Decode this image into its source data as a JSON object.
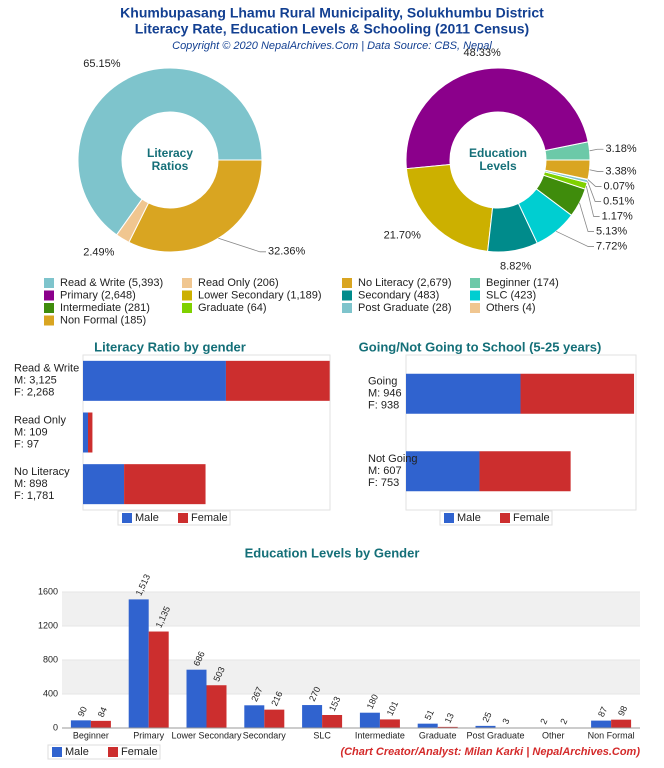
{
  "header": {
    "title": [
      "Khumbupasang Lhamu Rural Municipality, Solukhumbu District",
      "Literacy Rate, Education Levels & Schooling (2011 Census)"
    ],
    "subtitle": "Copyright © 2020 NepalArchives.Com | Data Source: CBS, Nepal"
  },
  "footer": {
    "credit": "(Chart Creator/Analyst: Milan Karki | NepalArchives.Com)"
  },
  "chart_data": [
    {
      "type": "pie",
      "center_label": [
        "Literacy",
        "Ratios"
      ],
      "categories": [
        "Read & Write (5,393)",
        "Read Only (206)",
        "No Literacy (2,679)"
      ],
      "values": [
        65.15,
        2.49,
        32.36
      ],
      "value_labels": [
        "65.15%",
        "2.49%",
        "32.36%"
      ],
      "colors": [
        "#7ec4cc",
        "#f0c690",
        "#d9a521"
      ]
    },
    {
      "type": "pie",
      "center_label": [
        "Education",
        "Levels"
      ],
      "categories": [
        "Beginner (174)",
        "Primary (2,648)",
        "Lower Secondary (1,189)",
        "Secondary (483)",
        "SLC (423)",
        "Intermediate (281)",
        "Graduate (64)",
        "Post Graduate (28)",
        "Others (4)",
        "Non Formal (185)"
      ],
      "values": [
        3.18,
        48.33,
        21.7,
        8.82,
        7.72,
        5.13,
        1.17,
        0.51,
        0.07,
        3.38
      ],
      "value_labels": [
        "3.18%",
        "48.33%",
        "21.70%",
        "8.82%",
        "7.72%",
        "5.13%",
        "1.17%",
        "0.51%",
        "0.07%",
        "3.38%"
      ],
      "colors": [
        "#6cc9a8",
        "#8b008b",
        "#ccb000",
        "#008b8b",
        "#00ced1",
        "#3f8c0c",
        "#7fd100",
        "#7ec4cc",
        "#f0c690",
        "#d9a521"
      ]
    },
    {
      "type": "bar",
      "horizontal": true,
      "stacked": true,
      "title": "Literacy Ratio by gender",
      "categories": [
        [
          "Read & Write",
          "M: 3,125",
          "F: 2,268"
        ],
        [
          "Read Only",
          "M: 109",
          "F: 97"
        ],
        [
          "No Literacy",
          "M: 898",
          "F: 1,781"
        ]
      ],
      "series": [
        {
          "name": "Male",
          "color": "#3063cf",
          "values": [
            3125,
            109,
            898
          ]
        },
        {
          "name": "Female",
          "color": "#cc2e2e",
          "values": [
            2268,
            97,
            1781
          ]
        }
      ],
      "xlim": [
        0,
        5400
      ]
    },
    {
      "type": "bar",
      "horizontal": true,
      "stacked": true,
      "title": "Going/Not Going to School (5-25 years)",
      "categories": [
        [
          "Going",
          "M: 946",
          "F: 938"
        ],
        [
          "Not Going",
          "M: 607",
          "F: 753"
        ]
      ],
      "series": [
        {
          "name": "Male",
          "color": "#3063cf",
          "values": [
            946,
            607
          ]
        },
        {
          "name": "Female",
          "color": "#cc2e2e",
          "values": [
            938,
            753
          ]
        }
      ],
      "xlim": [
        0,
        1900
      ]
    },
    {
      "type": "bar",
      "horizontal": false,
      "stacked": false,
      "title": "Education Levels by Gender",
      "categories": [
        "Beginner",
        "Primary",
        "Lower Secondary",
        "Secondary",
        "SLC",
        "Intermediate",
        "Graduate",
        "Post Graduate",
        "Other",
        "Non Formal"
      ],
      "series": [
        {
          "name": "Male",
          "color": "#3063cf",
          "values": [
            90,
            1513,
            686,
            267,
            270,
            180,
            51,
            25,
            2,
            87
          ],
          "value_labels": [
            "90",
            "1,513",
            "686",
            "267",
            "270",
            "180",
            "51",
            "25",
            "2",
            "87"
          ]
        },
        {
          "name": "Female",
          "color": "#cc2e2e",
          "values": [
            84,
            1135,
            503,
            216,
            153,
            101,
            13,
            3,
            2,
            98
          ],
          "value_labels": [
            "84",
            "1,135",
            "503",
            "216",
            "153",
            "101",
            "13",
            "3",
            "2",
            "98"
          ]
        }
      ],
      "ylim": [
        0,
        1600
      ],
      "yticks": [
        0,
        400,
        800,
        1200,
        1600
      ],
      "grid": true
    }
  ]
}
